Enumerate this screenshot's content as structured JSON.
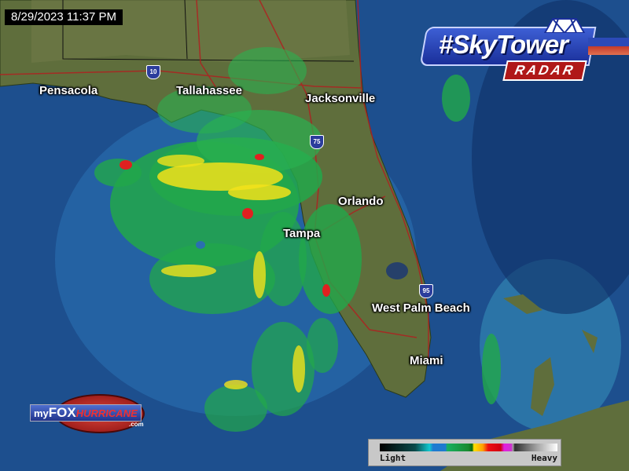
{
  "timestamp": "8/29/2023 11:37 PM",
  "branding": {
    "station_logo": "#SkyTower",
    "station_logo_sub": "RADAR",
    "web_logo_my": "my",
    "web_logo_fox": "FOX",
    "web_logo_hurricane": "HURRICANE",
    "web_logo_domain": ".com"
  },
  "cities": [
    {
      "name": "Pensacola"
    },
    {
      "name": "Tallahassee"
    },
    {
      "name": "Jacksonville"
    },
    {
      "name": "Orlando"
    },
    {
      "name": "Tampa"
    },
    {
      "name": "West Palm Beach"
    },
    {
      "name": "Miami"
    }
  ],
  "interstates": [
    {
      "number": "10"
    },
    {
      "number": "75"
    },
    {
      "number": "95"
    }
  ],
  "legend": {
    "low_label": "Light",
    "high_label": "Heavy",
    "scale_colors": [
      "#000000",
      "#10c8d0",
      "#1e7ad0",
      "#18b060",
      "#0a6a10",
      "#ffe000",
      "#ee1010",
      "#e020e0",
      "#303030",
      "#ffffff"
    ]
  },
  "colors": {
    "ocean": "#1d4f8e",
    "land": "#5a6a3a",
    "radar_light": "#22a84a",
    "radar_moderate": "#f2e21a",
    "radar_heavy": "#e02020",
    "roads": "#b02020"
  }
}
